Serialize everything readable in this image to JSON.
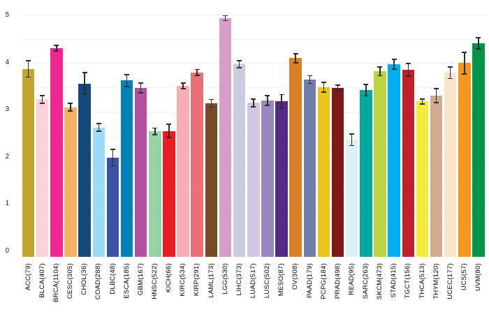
{
  "chart_data": {
    "type": "bar",
    "title": "",
    "xlabel": "",
    "ylabel": "",
    "ylim": [
      0,
      5
    ],
    "yticks": [
      0,
      1,
      2,
      3,
      4,
      5
    ],
    "grid": "horizontal gridlines every 0.5, very light gray",
    "legend": "none",
    "error_bars": "symmetric, dark gray caps",
    "error_bar_color": "#2b2b2b",
    "categories": [
      "ACC(79)",
      "BLCA(407)",
      "BRCA(1104)",
      "CESC(305)",
      "CHOL(36)",
      "COAD(288)",
      "DLBC(48)",
      "ESCA(185)",
      "GBM(167)",
      "HNSC(522)",
      "KICH(66)",
      "KIRC(534)",
      "KIRP(291)",
      "LAML(173)",
      "LGG(530)",
      "LIHC(373)",
      "LUAD(517)",
      "LUSC(502)",
      "MESO(87)",
      "OV(308)",
      "PAAD(179)",
      "PCPG(184)",
      "PRAD(498)",
      "READ(95)",
      "SARC(263)",
      "SKCM(473)",
      "STAD(415)",
      "TGCT(156)",
      "THCA(513)",
      "THYM(120)",
      "UCEC(177)",
      "UCS(57)",
      "UVM(80)"
    ],
    "values": [
      3.88,
      3.25,
      4.31,
      3.09,
      3.58,
      2.67,
      2.05,
      3.64,
      3.49,
      2.59,
      2.6,
      3.53,
      3.81,
      3.17,
      4.93,
      3.98,
      3.18,
      3.23,
      3.21,
      4.1,
      3.66,
      3.5,
      3.49,
      2.42,
      3.44,
      3.83,
      3.98,
      3.86,
      3.21,
      3.33,
      3.8,
      4.0,
      4.41
    ],
    "errors": [
      0.17,
      0.08,
      0.06,
      0.08,
      0.22,
      0.08,
      0.17,
      0.12,
      0.1,
      0.07,
      0.14,
      0.06,
      0.06,
      0.08,
      0.05,
      0.07,
      0.08,
      0.1,
      0.14,
      0.09,
      0.08,
      0.1,
      0.06,
      0.12,
      0.12,
      0.09,
      0.1,
      0.13,
      0.05,
      0.14,
      0.12,
      0.22,
      0.12
    ],
    "colors": [
      "#c2a52f",
      "#f8d1db",
      "#ed2891",
      "#f5b36a",
      "#15497b",
      "#9cdcf7",
      "#3c51a5",
      "#0580b5",
      "#b1519e",
      "#98d1a8",
      "#ec1c24",
      "#f8aeb5",
      "#e97077",
      "#754c29",
      "#d69ec6",
      "#cacbdf",
      "#d4c6e2",
      "#9d87c1",
      "#552a87",
      "#d88027",
      "#6f7dab",
      "#e8c61e",
      "#7d1816",
      "#deeff8",
      "#00a99d",
      "#bbd542",
      "#00aeef",
      "#bf1f2d",
      "#f4ea3b",
      "#cfaa8e",
      "#fae3cd",
      "#f7941e",
      "#019347"
    ]
  },
  "axis": {
    "y_tick_labels": [
      "0",
      "1",
      "2",
      "3",
      "4",
      "5"
    ]
  }
}
